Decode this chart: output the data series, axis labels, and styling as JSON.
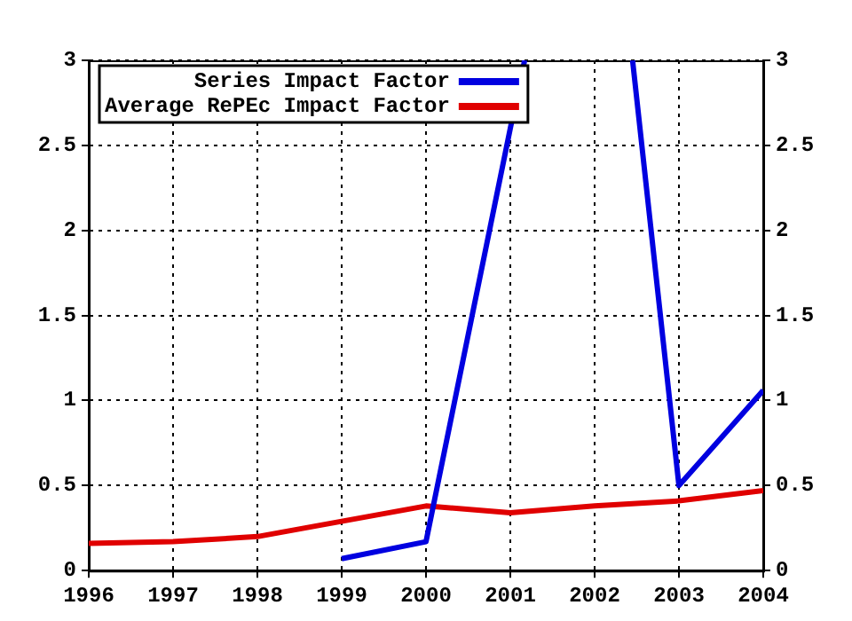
{
  "chart_data": {
    "type": "line",
    "x": [
      1996,
      1997,
      1998,
      1999,
      2000,
      2001,
      2002,
      2003,
      2004
    ],
    "series": [
      {
        "name": "Series Impact Factor",
        "color": "#0000e0",
        "x": [
          1999,
          2000,
          2001,
          2001.17,
          2002,
          2002.45,
          2003,
          2004
        ],
        "values": [
          0.07,
          0.17,
          2.6,
          3,
          null,
          3,
          0.5,
          1.06
        ]
      },
      {
        "name": "Average RePEc Impact Factor",
        "color": "#e00000",
        "values": [
          0.16,
          0.17,
          0.2,
          0.29,
          0.38,
          0.34,
          0.38,
          0.41,
          0.47
        ]
      }
    ],
    "xlim": [
      1996,
      2004
    ],
    "xticks": [
      1996,
      1997,
      1998,
      1999,
      2000,
      2001,
      2002,
      2003,
      2004
    ],
    "ylim": [
      0,
      3
    ],
    "yticks": [
      0,
      0.5,
      1,
      1.5,
      2,
      2.5,
      3
    ],
    "y2lim": [
      0,
      3
    ],
    "y2ticks": [
      0,
      0.5,
      1,
      1.5,
      2,
      2.5,
      3
    ],
    "grid": true,
    "legend": "top left",
    "marker": "none",
    "line_style": "solid"
  }
}
